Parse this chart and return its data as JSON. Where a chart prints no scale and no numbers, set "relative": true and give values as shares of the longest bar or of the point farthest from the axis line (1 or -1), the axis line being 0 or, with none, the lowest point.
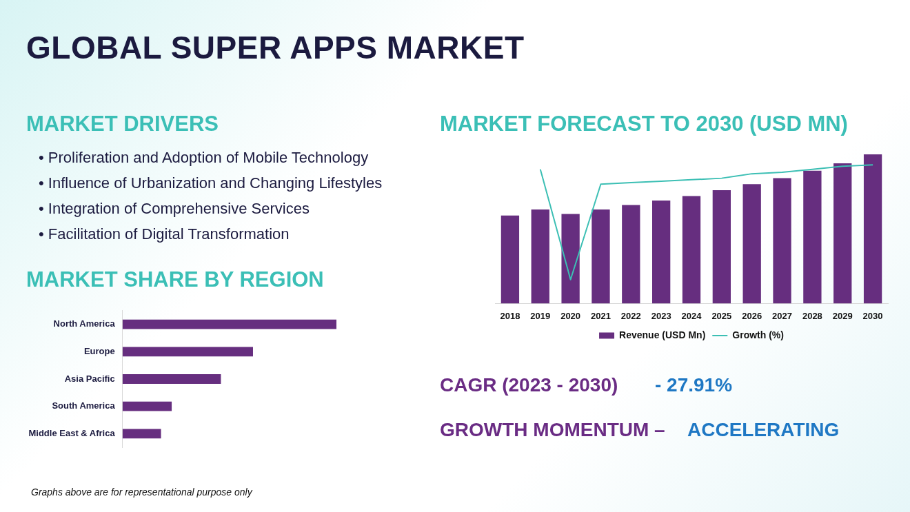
{
  "chart_data": [
    {
      "type": "other",
      "title": "GLOBAL SUPER APPS MARKET",
      "subtitle": "MARKET DRIVERS",
      "annotations": [
        "• Proliferation and Adoption of Mobile Technology",
        "• Influence of Urbanization and Changing Lifestyles",
        "• Integration of Comprehensive Services",
        "• Facilitation of Digital Transformation",
        "CAGR (2023 - 2030)",
        "- 27.91%",
        "GROWTH MOMENTUM –",
        "ACCELERATING",
        "Graphs above are for representational purpose only"
      ]
    },
    {
      "type": "bar",
      "title": "MARKET SHARE BY REGION",
      "orientation": "horizontal",
      "relative": true,
      "categories": [
        "North America",
        "Europe",
        "Asia Pacific",
        "South America",
        "Middle East & Africa"
      ],
      "values": [
        1,
        0.61,
        0.46,
        0.23,
        0.18
      ],
      "color": "#662e7f"
    },
    {
      "type": "bar",
      "title": "MARKET FORECAST TO 2030 (USD MN)",
      "relative": true,
      "categories": [
        "2018",
        "2019",
        "2020",
        "2021",
        "2022",
        "2023",
        "2024",
        "2025",
        "2026",
        "2027",
        "2028",
        "2029",
        "2030"
      ],
      "legend": "bottom",
      "series": [
        {
          "name": "Revenue (USD Mn)",
          "type": "bar",
          "color": "#662e7f",
          "values": [
            0.59,
            0.63,
            0.6,
            0.63,
            0.66,
            0.69,
            0.72,
            0.76,
            0.8,
            0.84,
            0.89,
            0.94,
            1
          ]
        },
        {
          "name": "Growth (%)",
          "type": "line",
          "color": "#3cbfb4",
          "values": [
            null,
            0.9,
            0.16,
            0.8,
            0.81,
            0.82,
            0.83,
            0.84,
            0.87,
            0.88,
            0.9,
            0.92,
            0.93
          ]
        }
      ]
    }
  ]
}
